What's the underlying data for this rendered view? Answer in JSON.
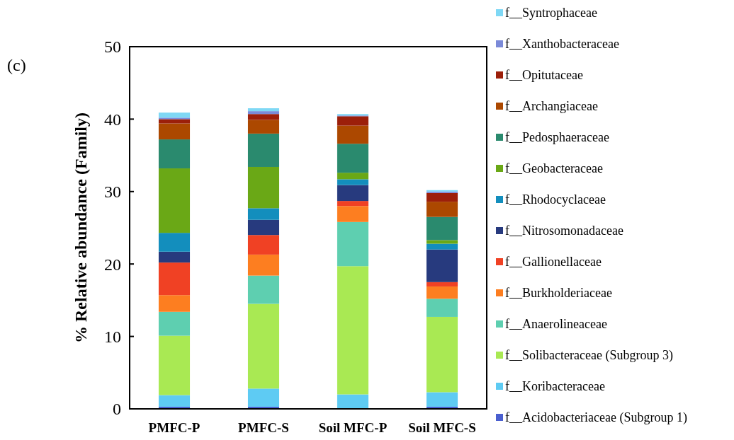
{
  "chart_data": {
    "type": "bar",
    "stacked": true,
    "ylabel": "% Relative abundance  (Family)",
    "annotations": [
      "(c)"
    ],
    "categories": [
      "PMFC-P",
      "PMFC-S",
      "Soil MFC-P",
      "Soil MFC-S"
    ],
    "ylim": [
      0,
      50
    ],
    "yticks": [
      0,
      10,
      20,
      30,
      40,
      50
    ],
    "grid": false,
    "legend": "right",
    "series": [
      {
        "name": "f__Acidobacteriaceae (Subgroup 1)",
        "color": "#4a5fcf",
        "values": [
          0.3,
          0.3,
          null,
          0.3
        ]
      },
      {
        "name": "f__Koribacteraceae",
        "color": "#5ecbf3",
        "values": [
          1.6,
          2.5,
          2.0,
          2.0
        ]
      },
      {
        "name": "f__Solibacteraceae (Subgroup 3)",
        "color": "#a9e953",
        "values": [
          8.2,
          11.7,
          17.7,
          10.4
        ]
      },
      {
        "name": "f__Anaerolineaceae",
        "color": "#5ecfb0",
        "values": [
          3.3,
          3.9,
          6.1,
          2.5
        ]
      },
      {
        "name": "f__Burkholderiaceae",
        "color": "#fd7e20",
        "values": [
          2.3,
          2.9,
          2.2,
          1.7
        ]
      },
      {
        "name": "f__Gallionellaceae",
        "color": "#f04124",
        "values": [
          4.5,
          2.7,
          0.7,
          0.6
        ]
      },
      {
        "name": "f__Nitrosomonadaceae",
        "color": "#273a7e",
        "values": [
          1.5,
          2.1,
          2.2,
          4.5
        ]
      },
      {
        "name": "f__Rhodocyclaceae",
        "color": "#138ebd",
        "values": [
          2.6,
          1.6,
          0.8,
          0.8
        ]
      },
      {
        "name": "f__Geobacteraceae",
        "color": "#6aa816",
        "values": [
          8.9,
          5.7,
          0.9,
          0.5
        ]
      },
      {
        "name": "f__Pedosphaeraceae",
        "color": "#2a8a6e",
        "values": [
          4.0,
          4.6,
          4.0,
          3.2
        ]
      },
      {
        "name": "f__Archangiaceae",
        "color": "#ac4800",
        "values": [
          2.2,
          1.9,
          2.5,
          2.1
        ]
      },
      {
        "name": "f__Opitutaceae",
        "color": "#9c1f0a",
        "values": [
          0.6,
          0.8,
          1.3,
          1.2
        ]
      },
      {
        "name": "f__Xanthobacteraceae",
        "color": "#7b8ad8",
        "values": [
          0.2,
          0.4,
          0.1,
          0.2
        ]
      },
      {
        "name": "f__Syntrophaceae",
        "color": "#7fd8f5",
        "values": [
          0.7,
          0.4,
          0.2,
          0.2
        ]
      }
    ]
  }
}
